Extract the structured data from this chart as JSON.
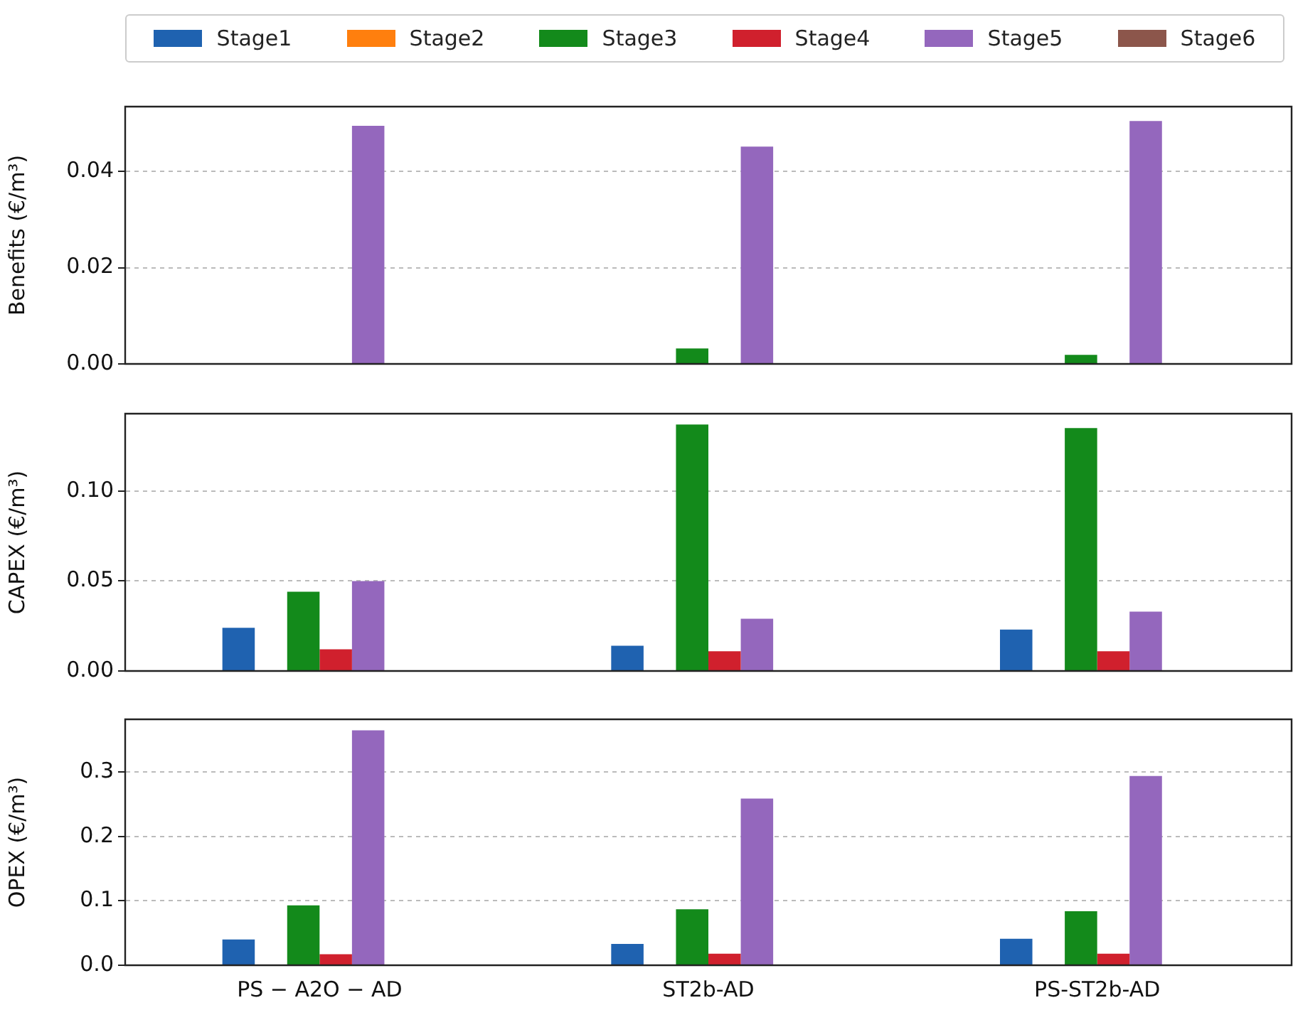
{
  "chart_data": [
    {
      "type": "bar",
      "ylabel": "Benefits (€/m³)",
      "categories": [
        null,
        null,
        null
      ],
      "ylim": [
        0,
        0.0535
      ],
      "yticks": [
        {
          "value": 0,
          "label": "0.00"
        },
        {
          "value": 0.02,
          "label": "0.02"
        },
        {
          "value": 0.04,
          "label": "0.04"
        }
      ],
      "grid": "y",
      "legend": "top",
      "tick_labels": "y",
      "series": [
        {
          "name": "Stage1",
          "color": "#1f62b0",
          "values": [
            0,
            0,
            0
          ]
        },
        {
          "name": "Stage2",
          "color": "#ff7f0e",
          "values": [
            0,
            0,
            0
          ]
        },
        {
          "name": "Stage3",
          "color": "#138a1b",
          "values": [
            0,
            0.0032,
            0.0019
          ]
        },
        {
          "name": "Stage4",
          "color": "#d0202d",
          "values": [
            0,
            0,
            0
          ]
        },
        {
          "name": "Stage5",
          "color": "#9467bd",
          "values": [
            0.0495,
            0.0452,
            0.0505
          ]
        },
        {
          "name": "Stage6",
          "color": "#8c564b",
          "values": [
            0,
            0,
            0
          ]
        }
      ]
    },
    {
      "type": "bar",
      "ylabel": "CAPEX (€/m³)",
      "categories": [
        null,
        null,
        null
      ],
      "ylim": [
        0,
        0.143
      ],
      "yticks": [
        {
          "value": 0,
          "label": "0.00"
        },
        {
          "value": 0.05,
          "label": "0.05"
        },
        {
          "value": 0.1,
          "label": "0.10"
        }
      ],
      "grid": "y",
      "tick_labels": "y",
      "series": [
        {
          "color": "#1f62b0",
          "values": [
            0.024,
            0.014,
            0.023
          ]
        },
        {
          "color": "#ff7f0e",
          "values": [
            0,
            0,
            0
          ]
        },
        {
          "color": "#138a1b",
          "values": [
            0.044,
            0.137,
            0.135
          ]
        },
        {
          "color": "#d0202d",
          "values": [
            0.012,
            0.011,
            0.011
          ]
        },
        {
          "color": "#9467bd",
          "values": [
            0.05,
            0.029,
            0.033
          ]
        },
        {
          "color": "#8c564b",
          "values": [
            0,
            0,
            0
          ]
        }
      ]
    },
    {
      "type": "bar",
      "ylabel": "OPEX (€/m³)",
      "categories": [
        "PS − A2O − AD",
        "ST2b-AD",
        "PS-ST2b-AD"
      ],
      "ylim": [
        0,
        0.382
      ],
      "yticks": [
        {
          "value": 0,
          "label": "0.0"
        },
        {
          "value": 0.1,
          "label": "0.1"
        },
        {
          "value": 0.2,
          "label": "0.2"
        },
        {
          "value": 0.3,
          "label": "0.3"
        }
      ],
      "grid": "y",
      "series": [
        {
          "color": "#1f62b0",
          "values": [
            0.04,
            0.033,
            0.041
          ]
        },
        {
          "color": "#ff7f0e",
          "values": [
            0,
            0,
            0
          ]
        },
        {
          "color": "#138a1b",
          "values": [
            0.093,
            0.087,
            0.084
          ]
        },
        {
          "color": "#d0202d",
          "values": [
            0.017,
            0.018,
            0.018
          ]
        },
        {
          "color": "#9467bd",
          "values": [
            0.365,
            0.259,
            0.294
          ]
        },
        {
          "color": "#8c564b",
          "values": [
            0,
            0,
            0
          ]
        }
      ]
    }
  ]
}
